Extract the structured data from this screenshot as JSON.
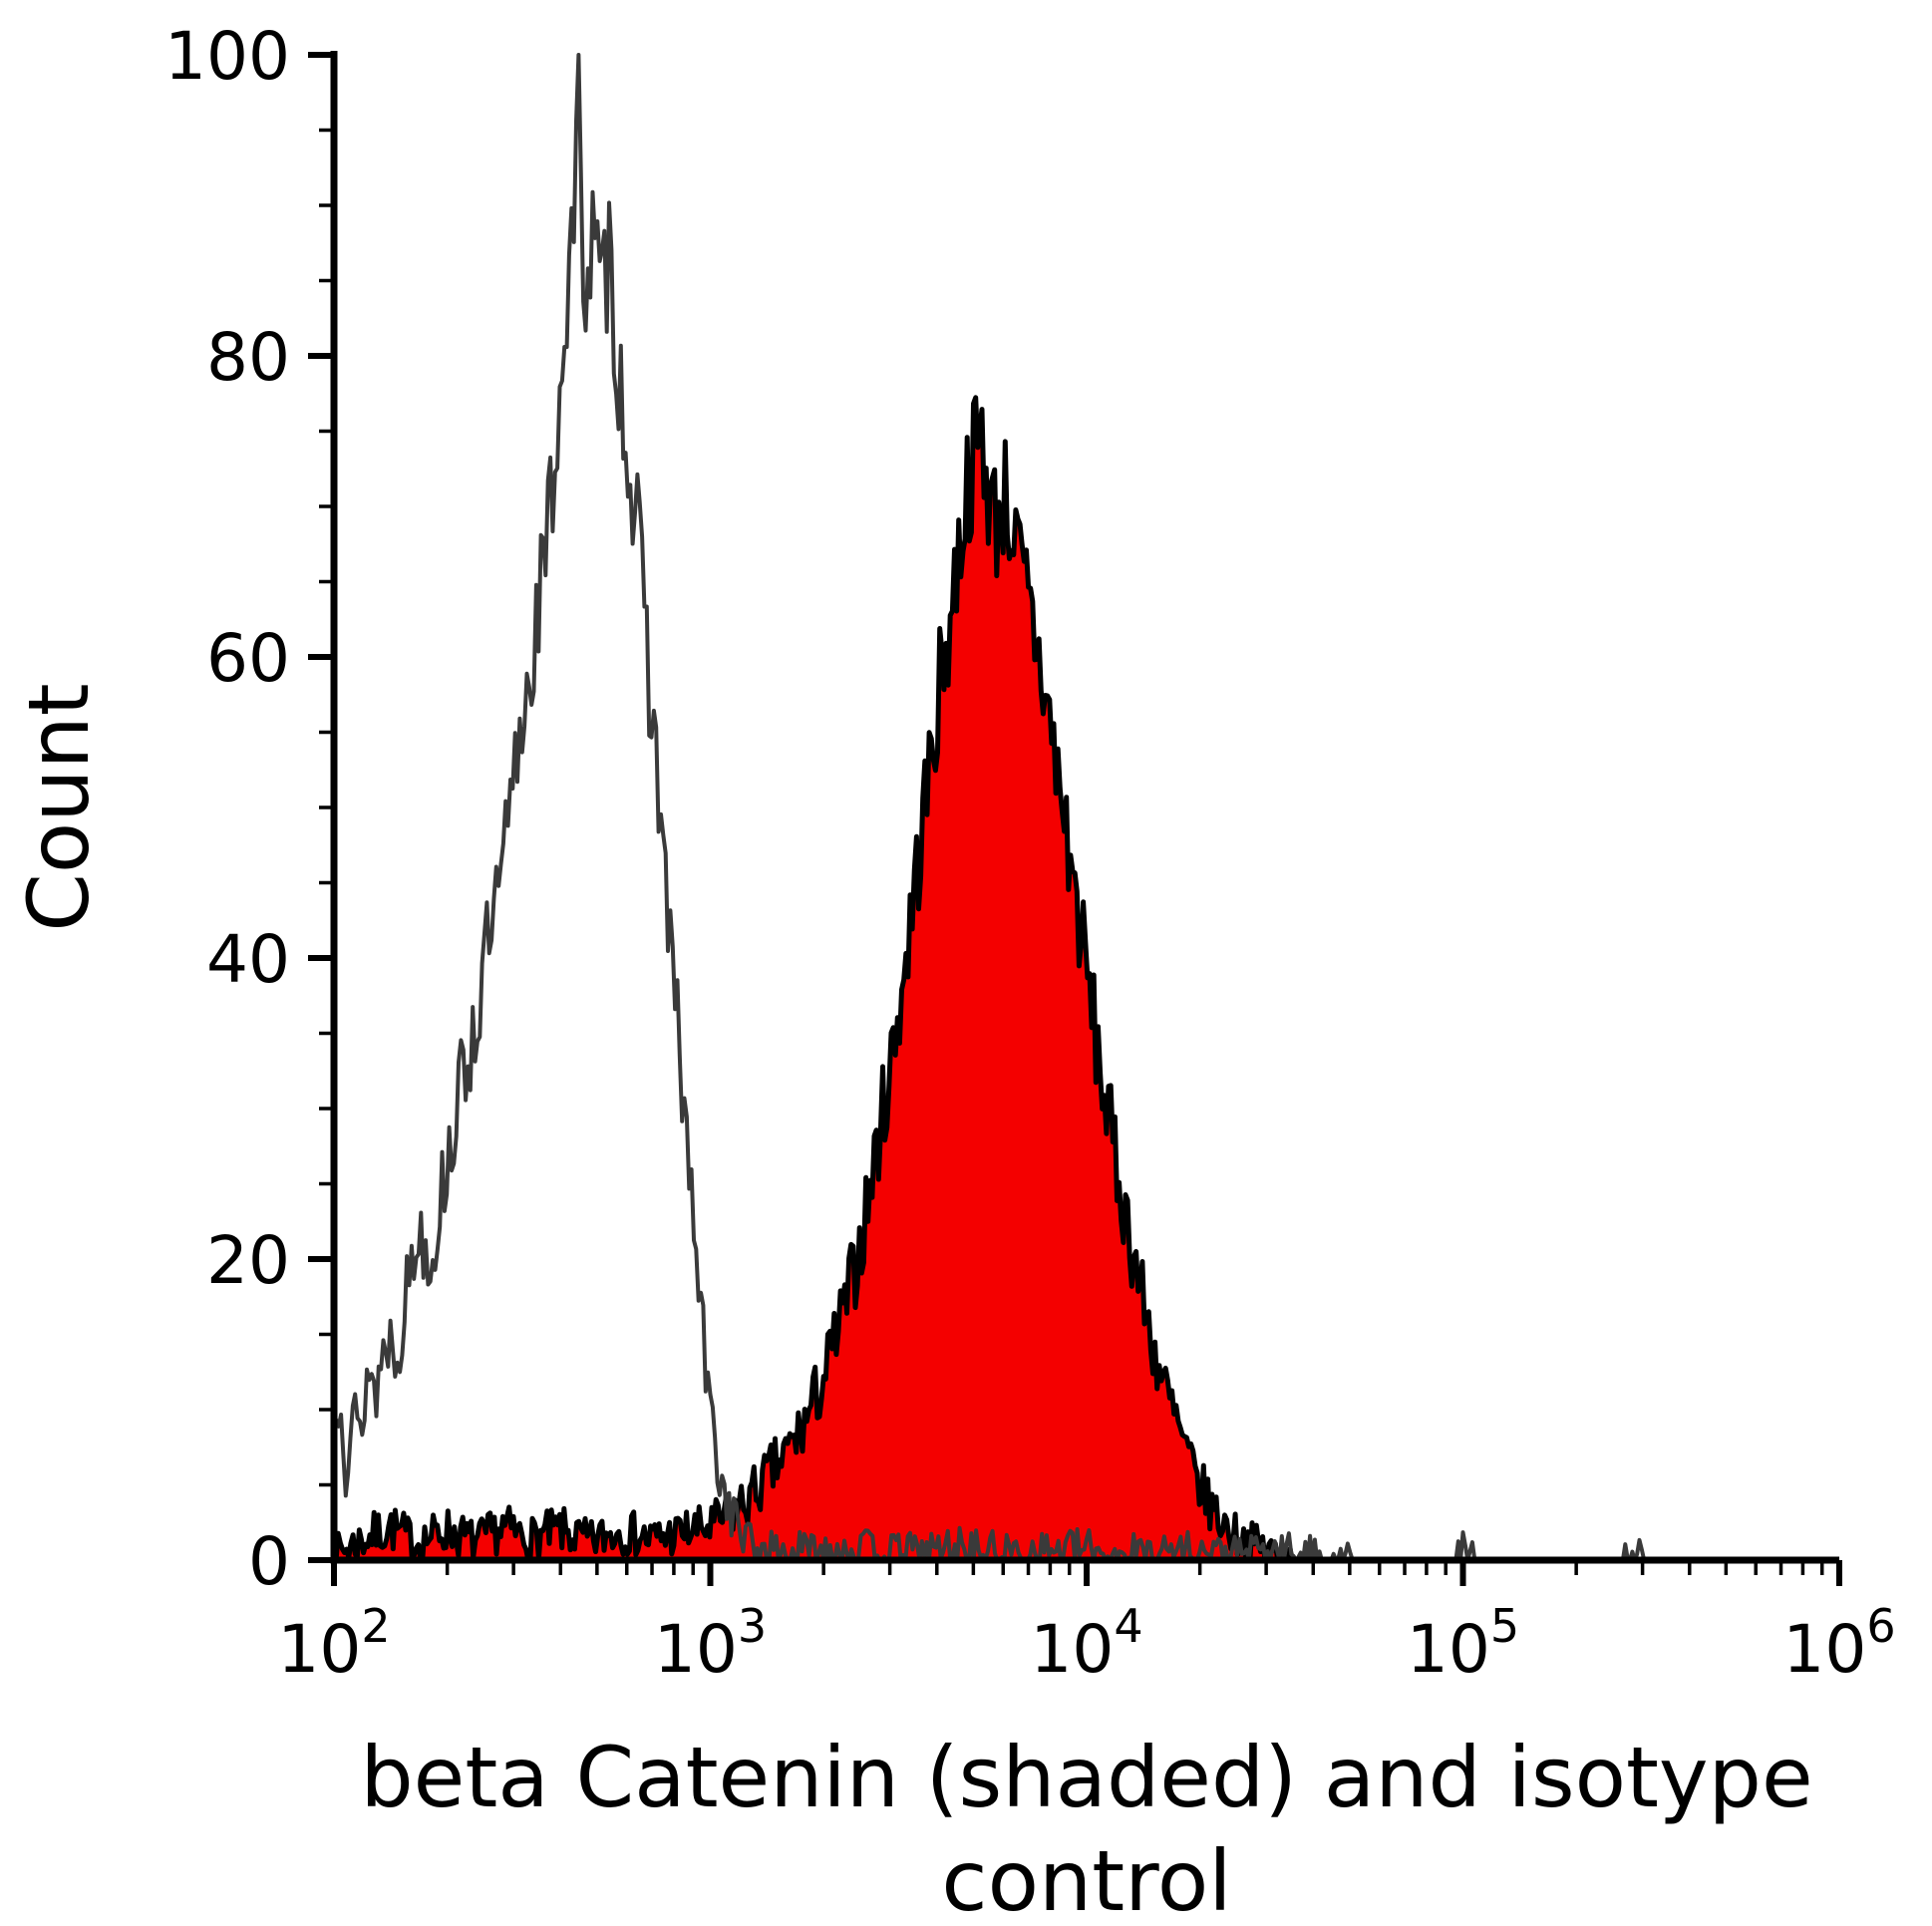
{
  "figure": {
    "background": "#ffffff"
  },
  "chart_data": {
    "type": "area",
    "variant": "flow-cytometry-histogram-overlay",
    "title": "",
    "xlabel": "beta Catenin (shaded) and isotype control",
    "xlabel_lines": [
      "beta Catenin (shaded) and isotype",
      "control"
    ],
    "ylabel": "Count",
    "x_scale": "log10",
    "xlim": [
      100,
      1000000
    ],
    "ylim": [
      0,
      100
    ],
    "axis_color": "#000000",
    "grid": "off",
    "legend": "none",
    "y_ticks": [
      0,
      20,
      40,
      60,
      80,
      100
    ],
    "y_minor_step": 5,
    "x_minor_per_decade": [
      2,
      3,
      4,
      5,
      6,
      7,
      8,
      9
    ],
    "x_ticks": [
      {
        "value": 100,
        "base": "10",
        "exp": "2"
      },
      {
        "value": 1000,
        "base": "10",
        "exp": "3"
      },
      {
        "value": 10000,
        "base": "10",
        "exp": "4"
      },
      {
        "value": 100000,
        "base": "10",
        "exp": "5"
      },
      {
        "value": 1000000,
        "base": "10",
        "exp": "6"
      }
    ],
    "series": [
      {
        "name": "beta Catenin (shaded)",
        "role": "beta-catenin-shaded",
        "fill": "#f40000",
        "stroke": "#000000",
        "stroke_width": 5,
        "noise": 4,
        "seed": 7,
        "bins": 460,
        "log_range": [
          2.0,
          4.58
        ],
        "peak": {
          "x": 5200,
          "y": 75
        },
        "envelope": [
          [
            2.0,
            0.4
          ],
          [
            2.08,
            1.4
          ],
          [
            2.15,
            2.2
          ],
          [
            2.22,
            1.2
          ],
          [
            2.3,
            2.0
          ],
          [
            2.38,
            1.2
          ],
          [
            2.45,
            2.2
          ],
          [
            2.52,
            1.4
          ],
          [
            2.6,
            2.0
          ],
          [
            2.68,
            1.2
          ],
          [
            2.76,
            2.0
          ],
          [
            2.84,
            1.4
          ],
          [
            2.92,
            1.8
          ],
          [
            3.0,
            2.2
          ],
          [
            3.05,
            3
          ],
          [
            3.1,
            4
          ],
          [
            3.15,
            5.5
          ],
          [
            3.2,
            7
          ],
          [
            3.25,
            9
          ],
          [
            3.3,
            12
          ],
          [
            3.35,
            16
          ],
          [
            3.4,
            21
          ],
          [
            3.44,
            27
          ],
          [
            3.48,
            33
          ],
          [
            3.52,
            40
          ],
          [
            3.55,
            46
          ],
          [
            3.58,
            52
          ],
          [
            3.61,
            58
          ],
          [
            3.64,
            63
          ],
          [
            3.66,
            67
          ],
          [
            3.68,
            71
          ],
          [
            3.7,
            73
          ],
          [
            3.72,
            75
          ],
          [
            3.74,
            71
          ],
          [
            3.76,
            69
          ],
          [
            3.78,
            71
          ],
          [
            3.8,
            69
          ],
          [
            3.82,
            66
          ],
          [
            3.85,
            63
          ],
          [
            3.88,
            59
          ],
          [
            3.9,
            56
          ],
          [
            3.93,
            51
          ],
          [
            3.96,
            46
          ],
          [
            4.0,
            39
          ],
          [
            4.04,
            32
          ],
          [
            4.08,
            26
          ],
          [
            4.12,
            21
          ],
          [
            4.16,
            16
          ],
          [
            4.2,
            12
          ],
          [
            4.24,
            9
          ],
          [
            4.28,
            6
          ],
          [
            4.32,
            4
          ],
          [
            4.36,
            2.5
          ],
          [
            4.4,
            1.6
          ],
          [
            4.45,
            1.0
          ],
          [
            4.5,
            0.5
          ],
          [
            4.56,
            0
          ]
        ]
      },
      {
        "name": "isotype control",
        "role": "isotype-control-open",
        "fill": "none",
        "stroke": "#3a3a3a",
        "stroke_width": 4,
        "noise": 4,
        "seed": 13,
        "bins": 560,
        "log_range": [
          2.0,
          5.5
        ],
        "peak": {
          "x": 450,
          "y": 96
        },
        "envelope": [
          [
            2.0,
            9
          ],
          [
            2.02,
            12
          ],
          [
            2.03,
            6
          ],
          [
            2.05,
            10
          ],
          [
            2.07,
            8
          ],
          [
            2.09,
            13
          ],
          [
            2.11,
            11
          ],
          [
            2.14,
            15
          ],
          [
            2.17,
            14
          ],
          [
            2.2,
            19
          ],
          [
            2.23,
            22
          ],
          [
            2.26,
            20
          ],
          [
            2.29,
            25
          ],
          [
            2.32,
            29
          ],
          [
            2.35,
            33
          ],
          [
            2.38,
            36
          ],
          [
            2.41,
            41
          ],
          [
            2.44,
            44
          ],
          [
            2.46,
            48
          ],
          [
            2.48,
            52
          ],
          [
            2.5,
            56
          ],
          [
            2.52,
            59
          ],
          [
            2.54,
            63
          ],
          [
            2.56,
            66
          ],
          [
            2.58,
            71
          ],
          [
            2.6,
            78
          ],
          [
            2.62,
            84
          ],
          [
            2.64,
            90
          ],
          [
            2.65,
            96
          ],
          [
            2.66,
            89
          ],
          [
            2.67,
            85
          ],
          [
            2.69,
            88
          ],
          [
            2.71,
            83
          ],
          [
            2.73,
            87
          ],
          [
            2.75,
            81
          ],
          [
            2.77,
            76
          ],
          [
            2.79,
            72
          ],
          [
            2.81,
            67
          ],
          [
            2.83,
            61
          ],
          [
            2.85,
            55
          ],
          [
            2.87,
            49
          ],
          [
            2.89,
            42
          ],
          [
            2.91,
            36
          ],
          [
            2.93,
            30
          ],
          [
            2.95,
            24
          ],
          [
            2.97,
            18
          ],
          [
            2.99,
            12
          ],
          [
            3.01,
            8
          ],
          [
            3.03,
            5
          ],
          [
            3.06,
            3
          ],
          [
            3.09,
            1.5
          ],
          [
            3.12,
            0.8
          ],
          [
            3.2,
            0.5
          ],
          [
            3.35,
            0.9
          ],
          [
            3.5,
            0.5
          ],
          [
            3.65,
            0.9
          ],
          [
            3.8,
            0.5
          ],
          [
            3.95,
            0.8
          ],
          [
            4.1,
            0.5
          ],
          [
            4.25,
            0.7
          ],
          [
            4.4,
            0.4
          ],
          [
            4.55,
            0.6
          ],
          [
            4.65,
            0.2
          ],
          [
            4.72,
            0
          ],
          [
            4.97,
            0
          ],
          [
            5.0,
            0.7
          ],
          [
            5.03,
            0
          ],
          [
            5.42,
            0
          ],
          [
            5.45,
            0.6
          ],
          [
            5.48,
            0
          ]
        ]
      }
    ]
  }
}
